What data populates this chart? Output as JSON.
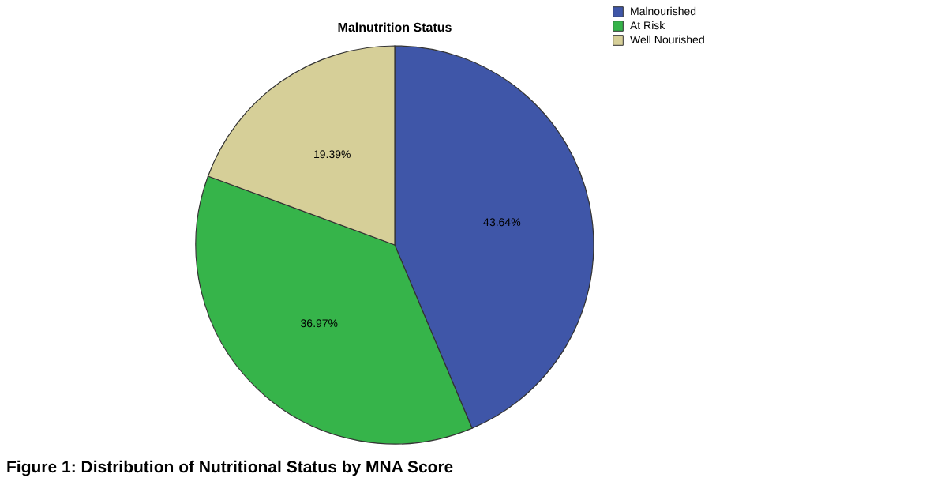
{
  "chart_data": {
    "type": "pie",
    "title": "Malnutrition Status",
    "categories": [
      "Malnourished",
      "At Risk",
      "Well Nourished"
    ],
    "values": [
      43.64,
      36.97,
      19.39
    ],
    "colors": [
      "#3f56a8",
      "#36b44a",
      "#d6cf98"
    ],
    "value_labels": [
      "43.64%",
      "36.97%",
      "19.39%"
    ],
    "legend": "top right",
    "annotations": [
      "Figure 1: Distribution of Nutritional Status by MNA Score"
    ]
  }
}
